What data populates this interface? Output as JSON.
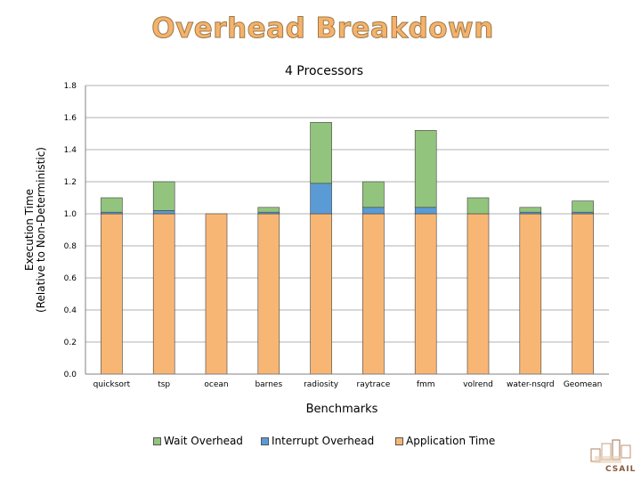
{
  "slide_title": "Overhead Breakdown",
  "chart_data": {
    "type": "bar",
    "stacked": true,
    "title": "4 Processors",
    "xlabel": "Benchmarks",
    "ylabel_line1": "Execution Time",
    "ylabel_line2": "(Relative to Non-Deterministic)",
    "ylim": [
      0,
      1.8
    ],
    "yticks": [
      "0.0",
      "0.2",
      "0.4",
      "0.6",
      "0.8",
      "1.0",
      "1.2",
      "1.4",
      "1.6",
      "1.8"
    ],
    "categories": [
      "quicksort",
      "tsp",
      "ocean",
      "barnes",
      "radiosity",
      "raytrace",
      "fmm",
      "volrend",
      "water-nsqrd",
      "Geomean"
    ],
    "series": [
      {
        "name": "Application Time",
        "color": "#f8b675",
        "values": [
          1.0,
          1.0,
          1.0,
          1.0,
          1.0,
          1.0,
          1.0,
          1.0,
          1.0,
          1.0
        ]
      },
      {
        "name": "Interrupt Overhead",
        "color": "#5b9bd5",
        "values": [
          0.01,
          0.02,
          0.0,
          0.01,
          0.19,
          0.04,
          0.04,
          0.0,
          0.01,
          0.01
        ]
      },
      {
        "name": "Wait Overhead",
        "color": "#93c47d",
        "values": [
          0.09,
          0.18,
          0.0,
          0.03,
          0.38,
          0.16,
          0.48,
          0.1,
          0.03,
          0.07
        ]
      }
    ],
    "legend": [
      "Wait Overhead",
      "Interrupt Overhead",
      "Application Time"
    ],
    "legend_position": "bottom"
  }
}
